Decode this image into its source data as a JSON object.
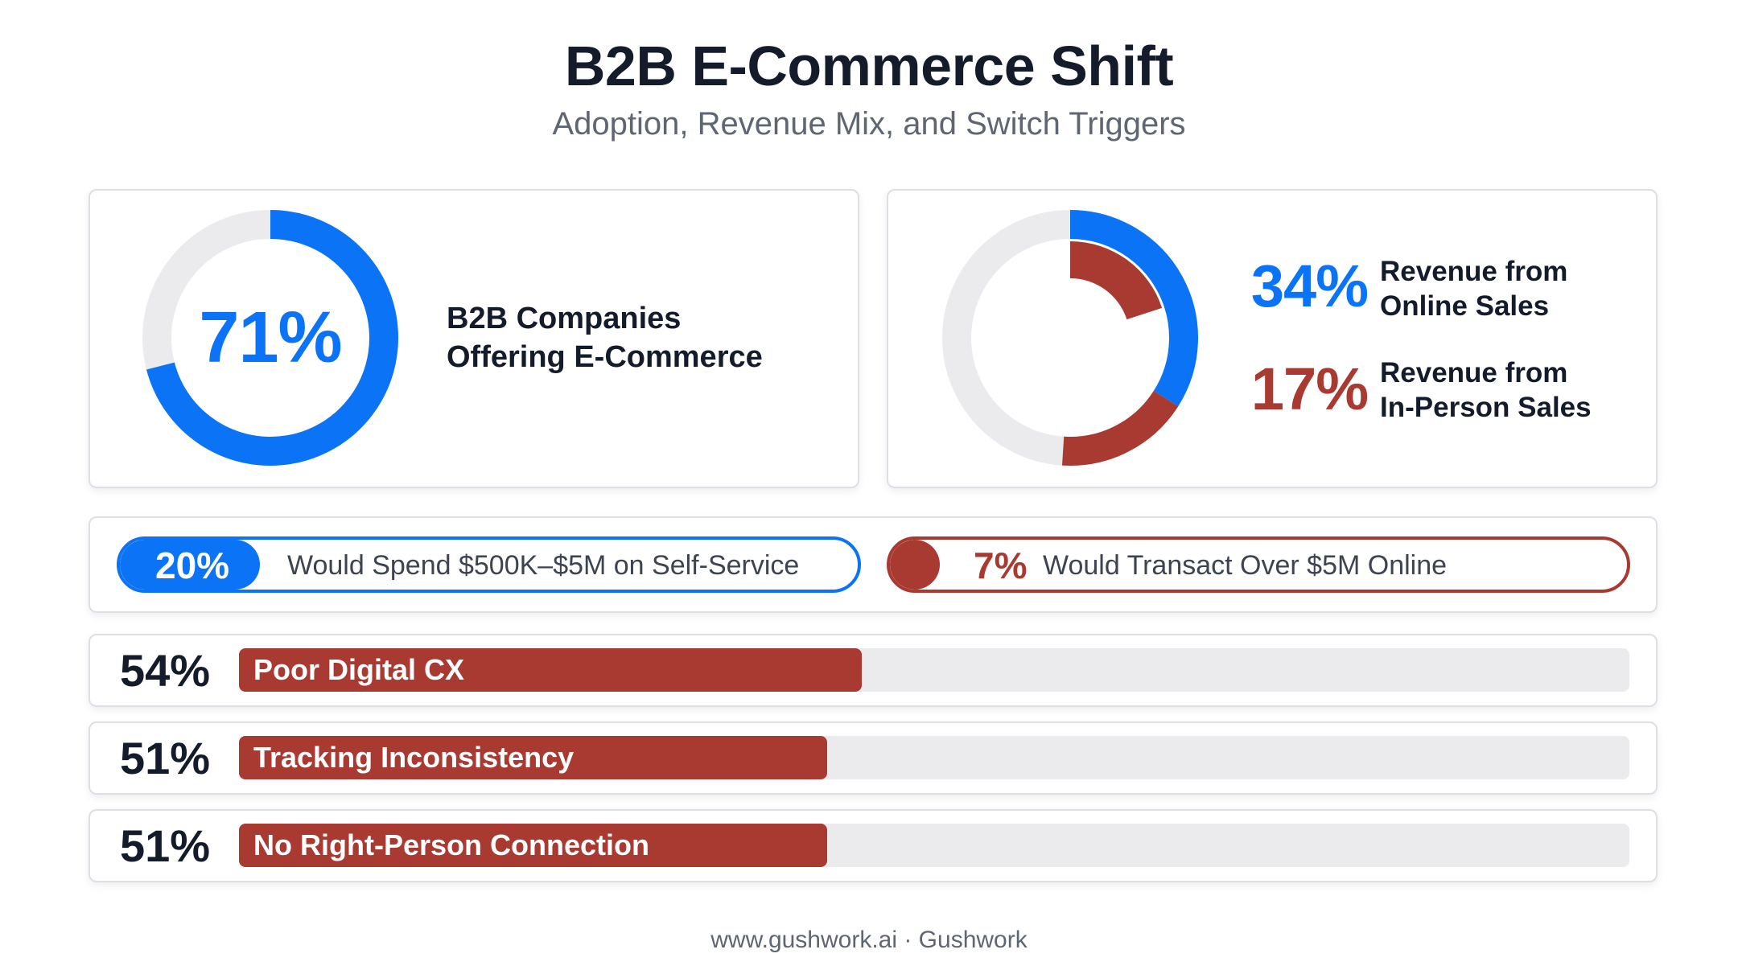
{
  "title": "B2B E-Commerce Shift",
  "subtitle": "Adoption, Revenue Mix, and Switch Triggers",
  "footer": "www.gushwork.ai · Gushwork",
  "colors": {
    "blue": "#0b73f5",
    "red": "#a83a32",
    "track": "#ebebee",
    "text": "#141b2b"
  },
  "chart_data": [
    {
      "type": "pie",
      "variant": "donut",
      "value": 71,
      "value_label": "71%",
      "label_lines": [
        "B2B Companies",
        "Offering E-Commerce"
      ]
    },
    {
      "type": "pie",
      "variant": "donut",
      "series": [
        {
          "value": 34,
          "value_label": "34%",
          "label_lines": [
            "Revenue from",
            "Online Sales"
          ]
        },
        {
          "value": 17,
          "value_label": "17%",
          "label_lines": [
            "Revenue from",
            "In-Person Sales"
          ]
        }
      ]
    },
    {
      "type": "bar",
      "variant": "pill",
      "items": [
        {
          "value": 20,
          "value_label": "20%",
          "label": "Would Spend $500K–$5M on Self-Service"
        },
        {
          "value": 7,
          "value_label": "7%",
          "label": "Would Transact Over $5M Online"
        }
      ]
    },
    {
      "type": "bar",
      "orientation": "horizontal",
      "xlim": [
        0,
        100
      ],
      "categories": [
        "Poor Digital CX",
        "Tracking Inconsistency",
        "No Right-Person Connection"
      ],
      "values": [
        54,
        51,
        51
      ],
      "value_labels": [
        "54%",
        "51%",
        "51%"
      ]
    }
  ]
}
